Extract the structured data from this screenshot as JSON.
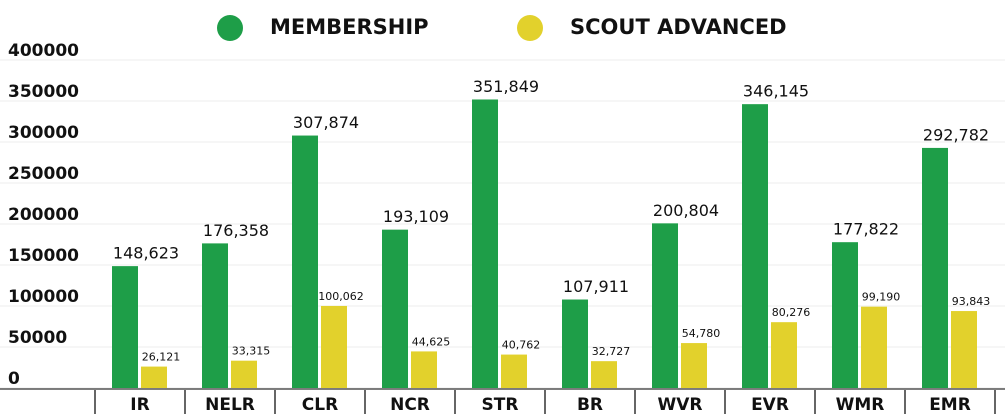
{
  "chart_data": {
    "type": "bar",
    "categories": [
      "IR",
      "NELR",
      "CLR",
      "NCR",
      "STR",
      "BR",
      "WVR",
      "EVR",
      "WMR",
      "EMR"
    ],
    "series": [
      {
        "name": "MEMBERSHIP",
        "color": "#1e9e48",
        "values": [
          148623,
          176358,
          307874,
          193109,
          351849,
          107911,
          200804,
          346145,
          177822,
          292782
        ],
        "value_labels": [
          "148,623",
          "176,358",
          "307,874",
          "193,109",
          "351,849",
          "107,911",
          "200,804",
          "346,145",
          "177,822",
          "292,782"
        ]
      },
      {
        "name": "SCOUT ADVANCED",
        "color": "#e2d12c",
        "values": [
          26121,
          33315,
          100062,
          44625,
          40762,
          32727,
          54780,
          80276,
          99190,
          93843
        ],
        "value_labels": [
          "26,121",
          "33,315",
          "100,062",
          "44,625",
          "40,762",
          "32,727",
          "54,780",
          "80,276",
          "99,190",
          "93,843"
        ]
      }
    ],
    "ylim": [
      0,
      400000
    ],
    "yticks": [
      0,
      50000,
      100000,
      150000,
      200000,
      250000,
      300000,
      350000,
      400000
    ],
    "grid": true,
    "legend": "top"
  }
}
